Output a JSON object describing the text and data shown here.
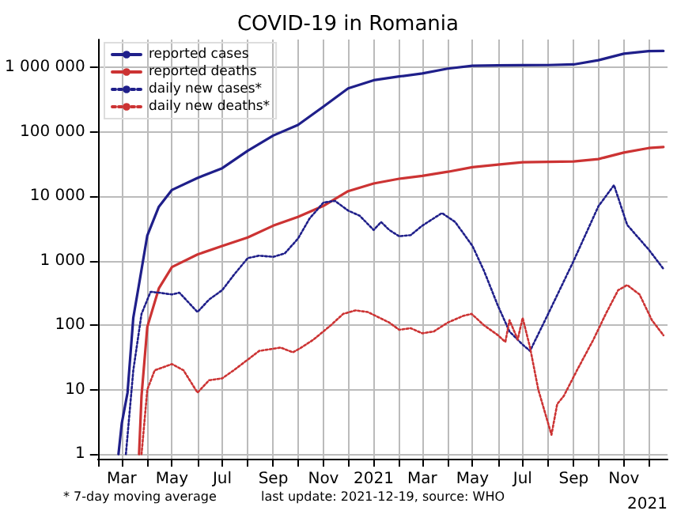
{
  "chart_data": {
    "type": "line",
    "title": "COVID-19 in Romania",
    "log": "y",
    "grid": true,
    "legend": "top left",
    "marker": "none",
    "xlim": [
      "2020-02-01",
      "2021-12-24"
    ],
    "xticks": [
      {
        "value": "2020-02-01",
        "label": null
      },
      {
        "value": "2020-03-01",
        "label": "Mar"
      },
      {
        "value": "2020-04-01",
        "label": null
      },
      {
        "value": "2020-05-01",
        "label": "May"
      },
      {
        "value": "2020-06-01",
        "label": null
      },
      {
        "value": "2020-07-01",
        "label": "Jul"
      },
      {
        "value": "2020-08-01",
        "label": null
      },
      {
        "value": "2020-09-01",
        "label": "Sep"
      },
      {
        "value": "2020-10-01",
        "label": null
      },
      {
        "value": "2020-11-01",
        "label": "Nov"
      },
      {
        "value": "2020-12-01",
        "label": null
      },
      {
        "value": "2021-01-01",
        "label": "2021"
      },
      {
        "value": "2021-02-01",
        "label": null
      },
      {
        "value": "2021-03-01",
        "label": "Mar"
      },
      {
        "value": "2021-04-01",
        "label": null
      },
      {
        "value": "2021-05-01",
        "label": "May"
      },
      {
        "value": "2021-06-01",
        "label": null
      },
      {
        "value": "2021-07-01",
        "label": "Jul"
      },
      {
        "value": "2021-08-01",
        "label": null
      },
      {
        "value": "2021-09-01",
        "label": "Sep"
      },
      {
        "value": "2021-10-01",
        "label": null
      },
      {
        "value": "2021-11-01",
        "label": "Nov"
      },
      {
        "value": "2021-12-01",
        "label": null
      }
    ],
    "ylim": [
      0.85,
      2700000
    ],
    "yticks": [
      1,
      10,
      100,
      {
        "value": 1000,
        "label": "1 000"
      },
      {
        "value": 10000,
        "label": "10 000"
      },
      {
        "value": 100000,
        "label": "100 000"
      },
      {
        "value": 1000000,
        "label": "1 000 000"
      }
    ],
    "annotations": [
      "* 7-day moving average",
      "last update: 2021-12-19, source: WHO",
      "2021"
    ],
    "series": [
      {
        "name": "reported cases",
        "color": "#1f1f8a",
        "line_style": "solid",
        "x": [
          "2020-02-26",
          "2020-03-01",
          "2020-03-08",
          "2020-03-15",
          "2020-03-22",
          "2020-04-01",
          "2020-04-15",
          "2020-05-01",
          "2020-06-01",
          "2020-07-01",
          "2020-08-01",
          "2020-09-01",
          "2020-10-01",
          "2020-11-01",
          "2020-12-01",
          "2021-01-01",
          "2021-02-01",
          "2021-03-01",
          "2021-04-01",
          "2021-05-01",
          "2021-06-01",
          "2021-07-01",
          "2021-08-01",
          "2021-09-01",
          "2021-10-01",
          "2021-11-01",
          "2021-12-01",
          "2021-12-19"
        ],
        "values": [
          1,
          3,
          9,
          131,
          433,
          2460,
          6879,
          12567,
          19257,
          27296,
          50886,
          87540,
          127572,
          246663,
          472000,
          632000,
          722000,
          804000,
          957000,
          1058000,
          1077000,
          1081000,
          1085000,
          1110000,
          1290000,
          1630000,
          1785000,
          1800000
        ]
      },
      {
        "name": "reported deaths",
        "color": "#cc3333",
        "line_style": "solid",
        "x": [
          "2020-03-22",
          "2020-03-25",
          "2020-04-01",
          "2020-04-15",
          "2020-05-01",
          "2020-06-01",
          "2020-07-01",
          "2020-08-01",
          "2020-09-01",
          "2020-10-01",
          "2020-11-01",
          "2020-12-01",
          "2021-01-01",
          "2021-02-01",
          "2021-03-01",
          "2021-04-01",
          "2021-05-01",
          "2021-06-01",
          "2021-07-01",
          "2021-08-01",
          "2021-09-01",
          "2021-10-01",
          "2021-11-01",
          "2021-12-01",
          "2021-12-19"
        ],
        "values": [
          1,
          8,
          94,
          372,
          800,
          1250,
          1700,
          2300,
          3500,
          4800,
          7100,
          12000,
          15800,
          18700,
          20700,
          24000,
          28300,
          31000,
          33800,
          34300,
          34700,
          37800,
          47700,
          56000,
          58000
        ]
      },
      {
        "name": "daily new cases*",
        "color": "#1f1f8a",
        "line_style": "dotted",
        "x": [
          "2020-03-06",
          "2020-03-15",
          "2020-03-25",
          "2020-04-05",
          "2020-04-15",
          "2020-05-01",
          "2020-05-10",
          "2020-06-01",
          "2020-06-15",
          "2020-07-01",
          "2020-07-15",
          "2020-08-01",
          "2020-08-15",
          "2020-09-01",
          "2020-09-15",
          "2020-10-01",
          "2020-10-15",
          "2020-11-01",
          "2020-11-15",
          "2020-12-01",
          "2020-12-15",
          "2021-01-01",
          "2021-01-10",
          "2021-01-20",
          "2021-02-01",
          "2021-02-15",
          "2021-03-01",
          "2021-03-25",
          "2021-04-10",
          "2021-05-01",
          "2021-05-15",
          "2021-06-01",
          "2021-06-15",
          "2021-07-01",
          "2021-07-10",
          "2021-08-01",
          "2021-09-01",
          "2021-10-01",
          "2021-10-20",
          "2021-11-05",
          "2021-12-01",
          "2021-12-19"
        ],
        "values": [
          1,
          20,
          150,
          330,
          320,
          300,
          320,
          160,
          250,
          350,
          600,
          1100,
          1200,
          1150,
          1300,
          2200,
          4500,
          8000,
          8500,
          6000,
          5000,
          3000,
          4000,
          3000,
          2400,
          2500,
          3500,
          5500,
          4000,
          1700,
          700,
          200,
          80,
          50,
          40,
          150,
          1000,
          7000,
          14900,
          3600,
          1500,
          750
        ]
      },
      {
        "name": "daily new deaths*",
        "color": "#cc3333",
        "line_style": "dotted",
        "x": [
          "2020-03-25",
          "2020-04-01",
          "2020-04-10",
          "2020-05-01",
          "2020-05-15",
          "2020-06-01",
          "2020-06-15",
          "2020-07-01",
          "2020-07-15",
          "2020-08-15",
          "2020-09-10",
          "2020-09-25",
          "2020-10-05",
          "2020-10-20",
          "2020-11-10",
          "2020-11-25",
          "2020-12-10",
          "2020-12-25",
          "2021-01-20",
          "2021-02-01",
          "2021-02-15",
          "2021-03-01",
          "2021-03-15",
          "2021-04-01",
          "2021-04-20",
          "2021-04-30",
          "2021-05-15",
          "2021-06-01",
          "2021-06-10",
          "2021-06-15",
          "2021-06-25",
          "2021-07-01",
          "2021-07-10",
          "2021-07-20",
          "2021-08-01",
          "2021-08-05",
          "2021-08-12",
          "2021-08-20",
          "2021-09-05",
          "2021-09-25",
          "2021-10-10",
          "2021-10-25",
          "2021-11-05",
          "2021-11-20",
          "2021-12-05",
          "2021-12-19"
        ],
        "values": [
          1,
          10,
          20,
          25,
          20,
          9,
          14,
          15,
          20,
          40,
          45,
          38,
          45,
          60,
          100,
          150,
          170,
          160,
          110,
          85,
          90,
          75,
          80,
          110,
          140,
          150,
          100,
          70,
          55,
          120,
          60,
          130,
          45,
          10,
          3,
          2,
          6,
          8,
          20,
          60,
          150,
          350,
          420,
          300,
          120,
          70
        ]
      }
    ]
  }
}
